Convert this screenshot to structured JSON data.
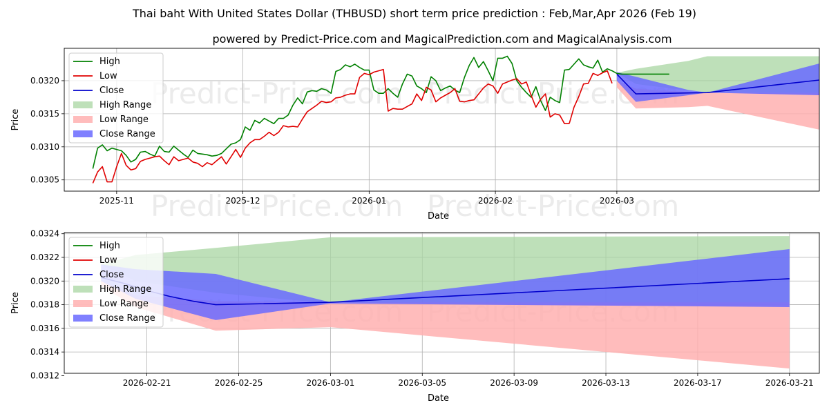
{
  "title": "Thai baht With United States Dollar (THBUSD) short term price prediction : Feb,Mar,Apr 2026 (Feb 19)",
  "subtitle": "powered by Predict-Price.com and MagicalPrediction.com and MagicalAnalysis.com",
  "watermark": "Predict-Price.com",
  "colors": {
    "high": "#008000",
    "low": "#e00000",
    "close": "#0000cc",
    "high_range": "#a8d5a2",
    "low_range": "#ffb0b0",
    "close_range": "#6a6aff"
  },
  "legend": [
    "High",
    "Low",
    "Close",
    "High Range",
    "Low Range",
    "Close Range"
  ],
  "chart_data": [
    {
      "type": "line",
      "panel": "top",
      "xlabel": "Date",
      "ylabel": "Price",
      "xlim": [
        -12,
        305
      ],
      "ylim": [
        0.03033,
        0.03249
      ],
      "x_ticks": [
        {
          "x": 10,
          "label": "2025-11"
        },
        {
          "x": 63,
          "label": "2025-12"
        },
        {
          "x": 116,
          "label": "2026-01"
        },
        {
          "x": 169,
          "label": "2026-02"
        },
        {
          "x": 220,
          "label": "2026-03"
        }
      ],
      "y_ticks": [
        {
          "v": 0.0305,
          "label": "0.0305"
        },
        {
          "v": 0.031,
          "label": "0.0310"
        },
        {
          "v": 0.0315,
          "label": "0.0315"
        },
        {
          "v": 0.032,
          "label": "0.0320"
        }
      ],
      "grid": true,
      "legend_position": "top-left",
      "series": [
        {
          "name": "High",
          "x": [
            0,
            2,
            4,
            6,
            8,
            10,
            12,
            14,
            16,
            18,
            20,
            22,
            24,
            26,
            28,
            30,
            32,
            34,
            36,
            38,
            40,
            42,
            44,
            46,
            48,
            50,
            52,
            54,
            56,
            58,
            60,
            62,
            64,
            66,
            68,
            70,
            72,
            74,
            76,
            78,
            80,
            82,
            84,
            86,
            88,
            90,
            92,
            94,
            96,
            98,
            100,
            102,
            104,
            106,
            108,
            110,
            112,
            114,
            116,
            118,
            120,
            122,
            124,
            126,
            128,
            130,
            132,
            134,
            136,
            138,
            140,
            142,
            144,
            146,
            148,
            150,
            152,
            154,
            156,
            158,
            160,
            162,
            164,
            166,
            168,
            170,
            172,
            174,
            176,
            178,
            180,
            182,
            184,
            186,
            188,
            190,
            192,
            194,
            196,
            198,
            200
          ],
          "values": [
            0.03067,
            0.03098,
            0.03103,
            0.03094,
            0.03098,
            0.03096,
            0.03094,
            0.03087,
            0.03077,
            0.03081,
            0.03092,
            0.03093,
            0.03089,
            0.03086,
            0.03101,
            0.03093,
            0.03092,
            0.03101,
            0.03095,
            0.03089,
            0.03084,
            0.03095,
            0.0309,
            0.03089,
            0.03088,
            0.03086,
            0.03087,
            0.0309,
            0.03097,
            0.03104,
            0.03106,
            0.03111,
            0.0313,
            0.03125,
            0.0314,
            0.03136,
            0.03143,
            0.03139,
            0.03135,
            0.03143,
            0.03143,
            0.03148,
            0.03163,
            0.03174,
            0.03165,
            0.03183,
            0.03185,
            0.03184,
            0.03188,
            0.03186,
            0.03181,
            0.03214,
            0.03217,
            0.03224,
            0.03221,
            0.03225,
            0.0322,
            0.03216,
            0.03216,
            0.03186,
            0.03181,
            0.03181,
            0.03188,
            0.03181,
            0.03175,
            0.03195,
            0.0321,
            0.03207,
            0.03192,
            0.03188,
            0.03182,
            0.03206,
            0.032,
            0.03185,
            0.03189,
            0.03192,
            0.03186,
            0.03182,
            0.03205,
            0.03223,
            0.03235,
            0.0322,
            0.03229,
            0.03215,
            0.032,
            0.03234,
            0.03234,
            0.03237,
            0.03226,
            0.032,
            0.0319,
            0.03182,
            0.03175,
            0.03191,
            0.0317,
            0.03155,
            0.03175,
            0.0317,
            0.03167,
            0.03216,
            0.03217
          ]
        },
        {
          "name": "Low",
          "x": [
            0,
            2,
            4,
            6,
            8,
            10,
            12,
            14,
            16,
            18,
            20,
            22,
            24,
            26,
            28,
            30,
            32,
            34,
            36,
            38,
            40,
            42,
            44,
            46,
            48,
            50,
            52,
            54,
            56,
            58,
            60,
            62,
            64,
            66,
            68,
            70,
            72,
            74,
            76,
            78,
            80,
            82,
            84,
            86,
            88,
            90,
            92,
            94,
            96,
            98,
            100,
            102,
            104,
            106,
            108,
            110,
            112,
            114,
            116,
            118,
            120,
            122,
            124,
            126,
            128,
            130,
            132,
            134,
            136,
            138,
            140,
            142,
            144,
            146,
            148,
            150,
            152,
            154,
            156,
            158,
            160,
            162,
            164,
            166,
            168,
            170,
            172,
            174,
            176,
            178,
            180,
            182,
            184,
            186,
            188,
            190,
            192,
            194,
            196,
            198,
            200
          ],
          "values": [
            0.03045,
            0.03062,
            0.0307,
            0.03047,
            0.03047,
            0.0307,
            0.0309,
            0.03072,
            0.03065,
            0.03067,
            0.03078,
            0.03081,
            0.03083,
            0.03085,
            0.03086,
            0.03079,
            0.03073,
            0.03085,
            0.03079,
            0.03081,
            0.03083,
            0.03077,
            0.03075,
            0.0307,
            0.03076,
            0.03073,
            0.03079,
            0.03085,
            0.03074,
            0.03085,
            0.03096,
            0.03084,
            0.03098,
            0.03106,
            0.03111,
            0.03111,
            0.03116,
            0.03122,
            0.03117,
            0.03122,
            0.03132,
            0.0313,
            0.03131,
            0.0313,
            0.03142,
            0.03153,
            0.03158,
            0.03163,
            0.03169,
            0.03167,
            0.03168,
            0.03174,
            0.03175,
            0.03178,
            0.0318,
            0.0318,
            0.03205,
            0.03211,
            0.03209,
            0.03213,
            0.03215,
            0.03217,
            0.03154,
            0.03158,
            0.03157,
            0.03157,
            0.03161,
            0.03165,
            0.0318,
            0.0317,
            0.0319,
            0.03186,
            0.03168,
            0.03174,
            0.03178,
            0.03182,
            0.03188,
            0.03169,
            0.03168,
            0.0317,
            0.03171,
            0.0318,
            0.03189,
            0.03195,
            0.03192,
            0.03181,
            0.03195,
            0.03198,
            0.03201,
            0.03203,
            0.03195,
            0.03198,
            0.03178,
            0.0316,
            0.03172,
            0.0318,
            0.03145,
            0.0315,
            0.03148,
            0.03135,
            0.03135
          ]
        },
        {
          "name": "High_tail",
          "x": [
            200,
            202,
            204,
            206,
            208,
            210,
            212,
            214,
            216,
            218,
            220,
            222,
            224,
            226,
            228,
            230,
            232,
            234,
            236,
            238,
            240,
            242
          ],
          "values": [
            0.03217,
            0.03225,
            0.03233,
            0.03224,
            0.03221,
            0.03219,
            0.03231,
            0.03213,
            0.03218,
            0.03215,
            0.03211,
            0.0321,
            0.0321,
            0.0321,
            0.0321,
            0.0321,
            0.0321,
            0.0321,
            0.0321,
            0.0321,
            0.0321,
            0.0321
          ],
          "continuation_of": "High"
        },
        {
          "name": "Low_tail",
          "x": [
            200,
            202,
            204,
            206,
            208,
            210,
            212,
            214,
            216,
            218
          ],
          "values": [
            0.03135,
            0.0316,
            0.03176,
            0.03195,
            0.03196,
            0.03211,
            0.03208,
            0.03212,
            0.03215,
            0.03196
          ],
          "continuation_of": "Low"
        },
        {
          "name": "Close",
          "x": [
            220,
            228,
            258,
            305
          ],
          "values": [
            0.0321,
            0.0318,
            0.03182,
            0.03201
          ]
        }
      ],
      "ranges": [
        {
          "name": "High Range",
          "x": [
            220,
            228,
            250,
            258,
            305
          ],
          "upper": [
            0.03212,
            0.03218,
            0.0323,
            0.03237,
            0.03237
          ],
          "lower": [
            0.03212,
            0.03195,
            0.03185,
            0.03182,
            0.03182
          ]
        },
        {
          "name": "Low Range",
          "x": [
            220,
            228,
            250,
            258,
            305
          ],
          "upper": [
            0.032,
            0.03188,
            0.03183,
            0.03182,
            0.03182
          ],
          "lower": [
            0.0319,
            0.03158,
            0.0316,
            0.03162,
            0.03126
          ]
        },
        {
          "name": "Close Range",
          "x": [
            220,
            228,
            250,
            258,
            305
          ],
          "upper": [
            0.03213,
            0.03206,
            0.03186,
            0.03182,
            0.03226
          ],
          "lower": [
            0.032,
            0.03168,
            0.03178,
            0.03182,
            0.03178
          ]
        }
      ]
    },
    {
      "type": "line",
      "panel": "bottom",
      "xlabel": "Date",
      "ylabel": "Price",
      "xlim": [
        -1.6,
        31.3
      ],
      "ylim": [
        0.03122,
        0.03241
      ],
      "x_ticks": [
        {
          "x": 2,
          "label": "2026-02-21"
        },
        {
          "x": 6,
          "label": "2026-02-25"
        },
        {
          "x": 10,
          "label": "2026-03-01"
        },
        {
          "x": 14,
          "label": "2026-03-05"
        },
        {
          "x": 18,
          "label": "2026-03-09"
        },
        {
          "x": 22,
          "label": "2026-03-13"
        },
        {
          "x": 26,
          "label": "2026-03-17"
        },
        {
          "x": 30,
          "label": "2026-03-21"
        }
      ],
      "y_ticks": [
        {
          "v": 0.0312,
          "label": "0.0312"
        },
        {
          "v": 0.0314,
          "label": "0.0314"
        },
        {
          "v": 0.0316,
          "label": "0.0316"
        },
        {
          "v": 0.0318,
          "label": "0.0318"
        },
        {
          "v": 0.032,
          "label": "0.0320"
        },
        {
          "v": 0.0322,
          "label": "0.0322"
        },
        {
          "v": 0.0324,
          "label": "0.0324"
        }
      ],
      "grid": true,
      "legend_position": "top-left",
      "series": [
        {
          "name": "Close",
          "x": [
            0,
            1,
            2,
            3,
            4,
            5,
            10,
            30
          ],
          "values": [
            0.03203,
            0.03198,
            0.03192,
            0.03187,
            0.03183,
            0.0318,
            0.03182,
            0.03202
          ]
        }
      ],
      "ranges": [
        {
          "name": "High Range",
          "x": [
            0,
            1.5,
            5,
            10,
            30
          ],
          "upper": [
            0.03214,
            0.03222,
            0.03228,
            0.03237,
            0.03238
          ],
          "lower": [
            0.03214,
            0.032,
            0.0319,
            0.03181,
            0.03181
          ]
        },
        {
          "name": "Low Range",
          "x": [
            0,
            1.5,
            5,
            10,
            30
          ],
          "upper": [
            0.032,
            0.03188,
            0.03183,
            0.03182,
            0.03182
          ],
          "lower": [
            0.03196,
            0.03178,
            0.03158,
            0.03161,
            0.03126
          ]
        },
        {
          "name": "Close Range",
          "x": [
            0,
            1.5,
            5,
            10,
            30
          ],
          "upper": [
            0.03214,
            0.0321,
            0.03206,
            0.03182,
            0.03227
          ],
          "lower": [
            0.032,
            0.03185,
            0.03167,
            0.03181,
            0.03178
          ]
        }
      ]
    }
  ]
}
